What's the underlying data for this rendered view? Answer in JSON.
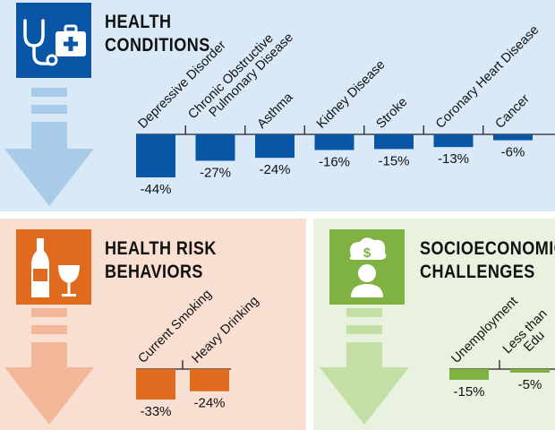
{
  "colors": {
    "health_bg": "#d9e9f7",
    "health_accent": "#0a56a6",
    "health_arrow": "#a9cbea",
    "risk_bg": "#f8dfd2",
    "risk_accent": "#e06b1f",
    "risk_arrow": "#f3b89a",
    "socio_bg": "#e9f2df",
    "socio_accent": "#7fb241",
    "socio_arrow": "#c3dfa6"
  },
  "panels": {
    "health": {
      "title_line1": "HEALTH",
      "title_line2": "CONDITIONS",
      "icon": "stethoscope-medkit-icon"
    },
    "risk": {
      "title_line1": "HEALTH RISK",
      "title_line2": "BEHAVIORS",
      "icon": "wine-bottle-glass-icon"
    },
    "socio": {
      "title_line1": "SOCIOECONOMIC",
      "title_line2": "CHALLENGES",
      "icon": "person-money-cloud-icon"
    }
  },
  "chart_data": [
    {
      "id": "health",
      "type": "bar",
      "title": "HEALTH CONDITIONS",
      "categories": [
        "Depressive Disorder",
        "Chronic Obstructive Pulmonary Disease",
        "Asthma",
        "Kidney Disease",
        "Stroke",
        "Coronary Heart Disease",
        "Cancer"
      ],
      "category_lines": [
        [
          "Depressive Disorder"
        ],
        [
          "Chronic Obstructive",
          "Pulmonary Disease"
        ],
        [
          "Asthma"
        ],
        [
          "Kidney Disease"
        ],
        [
          "Stroke"
        ],
        [
          "Coronary Heart Disease"
        ],
        [
          "Cancer"
        ]
      ],
      "values": [
        -44,
        -27,
        -24,
        -16,
        -15,
        -13,
        -6
      ],
      "labels": [
        "-44%",
        "-27%",
        "-24%",
        "-16%",
        "-15%",
        "-13%",
        "-6%"
      ],
      "unit": "%",
      "ylim": [
        -50,
        0
      ]
    },
    {
      "id": "risk",
      "type": "bar",
      "title": "HEALTH RISK BEHAVIORS",
      "categories": [
        "Current Smoking",
        "Heavy Drinking"
      ],
      "category_lines": [
        [
          "Current Smoking"
        ],
        [
          "Heavy Drinking"
        ]
      ],
      "values": [
        -33,
        -24
      ],
      "labels": [
        "-33%",
        "-24%"
      ],
      "unit": "%",
      "ylim": [
        -50,
        0
      ]
    },
    {
      "id": "socio",
      "type": "bar",
      "title": "SOCIOECONOMIC CHALLENGES",
      "categories": [
        "Unemployment",
        "Less than ... Edu..."
      ],
      "category_lines": [
        [
          "Unemployment"
        ],
        [
          "Less than",
          "Edu"
        ]
      ],
      "values": [
        -15,
        -5
      ],
      "labels": [
        "-15%",
        "-5%"
      ],
      "unit": "%",
      "ylim": [
        -50,
        0
      ]
    }
  ]
}
